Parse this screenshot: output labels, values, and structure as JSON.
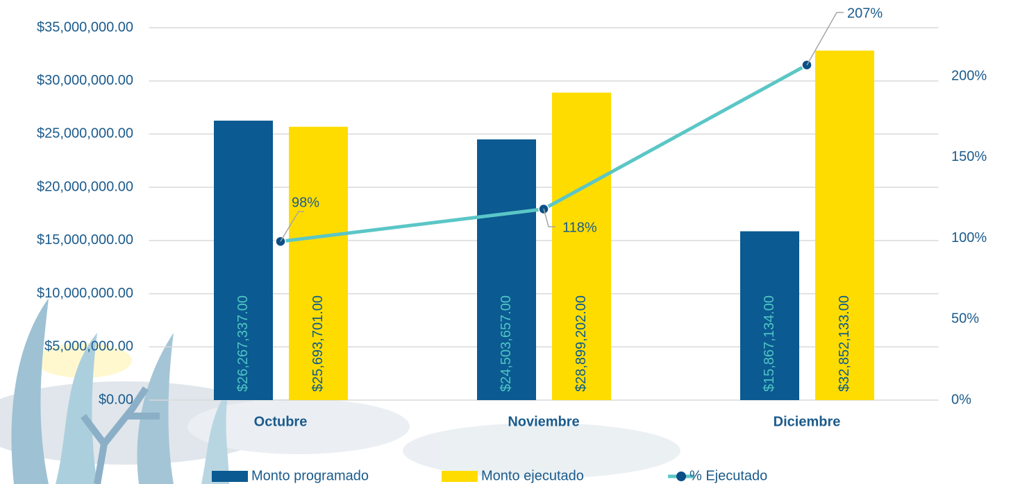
{
  "chart_data": {
    "type": "bar_line",
    "categories": [
      "Octubre",
      "Noviembre",
      "Diciembre"
    ],
    "series": [
      {
        "name": "Monto programado",
        "color": "#0b5a91",
        "label_color": "#4fc4c4",
        "values": [
          26267337,
          24503657,
          15867134
        ],
        "value_labels": [
          "$26,267,337.00",
          "$24,503,657.00",
          "$15,867,134.00"
        ]
      },
      {
        "name": "Monto ejecutado",
        "color": "#ffdc00",
        "label_color": "#0b5a91",
        "values": [
          25693701,
          28899202,
          32852133
        ],
        "value_labels": [
          "$25,693,701.00",
          "$28,899,202.00",
          "$32,852,133.00"
        ]
      },
      {
        "name": "% Ejecutado",
        "type": "line",
        "axis": "y2",
        "color": "#5bc6c6",
        "marker_color": "#0b4f86",
        "values": [
          98,
          118,
          207
        ],
        "value_labels": [
          "98%",
          "118%",
          "207%"
        ]
      }
    ],
    "ylim": [
      0,
      35000000
    ],
    "yticks": [
      {
        "value": 0,
        "label": "$0.00"
      },
      {
        "value": 5000000,
        "label": "$5,000,000.00"
      },
      {
        "value": 10000000,
        "label": "$10,000,000.00"
      },
      {
        "value": 15000000,
        "label": "$15,000,000.00"
      },
      {
        "value": 20000000,
        "label": "$20,000,000.00"
      },
      {
        "value": 25000000,
        "label": "$25,000,000.00"
      },
      {
        "value": 30000000,
        "label": "$30,000,000.00"
      },
      {
        "value": 35000000,
        "label": "$35,000,000.00"
      }
    ],
    "y2lim": [
      0,
      230
    ],
    "y2ticks": [
      {
        "value": 0,
        "label": "0%"
      },
      {
        "value": 50,
        "label": "50%"
      },
      {
        "value": 100,
        "label": "100%"
      },
      {
        "value": 150,
        "label": "150%"
      },
      {
        "value": 200,
        "label": "200%"
      }
    ],
    "grid": true,
    "legend": "bottom"
  }
}
